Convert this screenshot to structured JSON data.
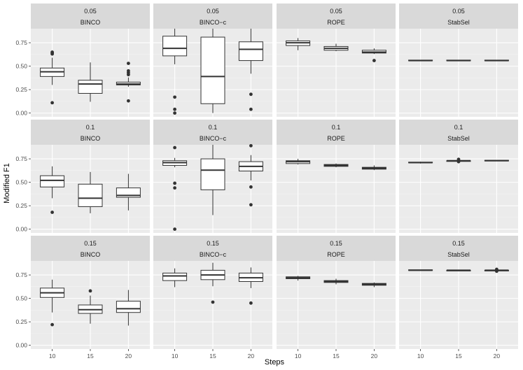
{
  "chart_data": {
    "type": "boxplot",
    "xlabel": "Steps",
    "ylabel": "Modified F1",
    "ylim": [
      -0.04,
      0.9
    ],
    "yticks": [
      0.0,
      0.25,
      0.5,
      0.75
    ],
    "ytick_labels": [
      "0.00",
      "0.25",
      "0.50",
      "0.75"
    ],
    "x_categories": [
      "10",
      "15",
      "20"
    ],
    "grid": true,
    "rows": [
      "0.05",
      "0.1",
      "0.15"
    ],
    "cols": [
      "BINCO",
      "BINCO−c",
      "ROPE",
      "StabSel"
    ],
    "panels": [
      {
        "row": "0.05",
        "method": "BINCO",
        "boxes": [
          {
            "x": "10",
            "min": 0.3,
            "q1": 0.39,
            "median": 0.44,
            "q3": 0.48,
            "max": 0.59,
            "outliers": [
              0.11,
              0.63,
              0.64,
              0.65
            ]
          },
          {
            "x": "15",
            "min": 0.12,
            "q1": 0.21,
            "median": 0.31,
            "q3": 0.35,
            "max": 0.54,
            "outliers": []
          },
          {
            "x": "20",
            "min": 0.28,
            "q1": 0.3,
            "median": 0.31,
            "q3": 0.33,
            "max": 0.38,
            "outliers": [
              0.13,
              0.41,
              0.43,
              0.45,
              0.53
            ]
          }
        ]
      },
      {
        "row": "0.05",
        "method": "BINCO−c",
        "boxes": [
          {
            "x": "10",
            "min": 0.52,
            "q1": 0.61,
            "median": 0.69,
            "q3": 0.82,
            "max": 0.9,
            "outliers": [
              0.0,
              0.04,
              0.17
            ]
          },
          {
            "x": "15",
            "min": 0.0,
            "q1": 0.1,
            "median": 0.39,
            "q3": 0.81,
            "max": 0.9,
            "outliers": []
          },
          {
            "x": "20",
            "min": 0.42,
            "q1": 0.56,
            "median": 0.68,
            "q3": 0.76,
            "max": 0.9,
            "outliers": [
              0.04,
              0.2
            ]
          }
        ]
      },
      {
        "row": "0.05",
        "method": "ROPE",
        "boxes": [
          {
            "x": "10",
            "min": 0.67,
            "q1": 0.72,
            "median": 0.75,
            "q3": 0.77,
            "max": 0.8,
            "outliers": []
          },
          {
            "x": "15",
            "min": 0.66,
            "q1": 0.67,
            "median": 0.69,
            "q3": 0.71,
            "max": 0.74,
            "outliers": []
          },
          {
            "x": "20",
            "min": 0.63,
            "q1": 0.64,
            "median": 0.65,
            "q3": 0.67,
            "max": 0.69,
            "outliers": [
              0.56
            ]
          }
        ]
      },
      {
        "row": "0.05",
        "method": "StabSel",
        "boxes": [
          {
            "x": "10",
            "min": 0.56,
            "q1": 0.56,
            "median": 0.56,
            "q3": 0.565,
            "max": 0.565,
            "outliers": []
          },
          {
            "x": "15",
            "min": 0.56,
            "q1": 0.56,
            "median": 0.56,
            "q3": 0.565,
            "max": 0.565,
            "outliers": []
          },
          {
            "x": "20",
            "min": 0.56,
            "q1": 0.56,
            "median": 0.56,
            "q3": 0.565,
            "max": 0.565,
            "outliers": []
          }
        ]
      },
      {
        "row": "0.1",
        "method": "BINCO",
        "boxes": [
          {
            "x": "10",
            "min": 0.33,
            "q1": 0.45,
            "median": 0.52,
            "q3": 0.57,
            "max": 0.67,
            "outliers": [
              0.18
            ]
          },
          {
            "x": "15",
            "min": 0.17,
            "q1": 0.24,
            "median": 0.33,
            "q3": 0.48,
            "max": 0.61,
            "outliers": []
          },
          {
            "x": "20",
            "min": 0.2,
            "q1": 0.34,
            "median": 0.36,
            "q3": 0.44,
            "max": 0.59,
            "outliers": []
          }
        ]
      },
      {
        "row": "0.1",
        "method": "BINCO−c",
        "boxes": [
          {
            "x": "10",
            "min": 0.66,
            "q1": 0.68,
            "median": 0.71,
            "q3": 0.73,
            "max": 0.76,
            "outliers": [
              0.0,
              0.44,
              0.49,
              0.87
            ]
          },
          {
            "x": "15",
            "min": 0.15,
            "q1": 0.42,
            "median": 0.63,
            "q3": 0.75,
            "max": 0.9,
            "outliers": []
          },
          {
            "x": "20",
            "min": 0.52,
            "q1": 0.62,
            "median": 0.67,
            "q3": 0.72,
            "max": 0.79,
            "outliers": [
              0.26,
              0.45,
              0.89
            ]
          }
        ]
      },
      {
        "row": "0.1",
        "method": "ROPE",
        "boxes": [
          {
            "x": "10",
            "min": 0.69,
            "q1": 0.7,
            "median": 0.72,
            "q3": 0.73,
            "max": 0.75,
            "outliers": []
          },
          {
            "x": "15",
            "min": 0.66,
            "q1": 0.67,
            "median": 0.68,
            "q3": 0.69,
            "max": 0.7,
            "outliers": []
          },
          {
            "x": "20",
            "min": 0.63,
            "q1": 0.64,
            "median": 0.65,
            "q3": 0.66,
            "max": 0.68,
            "outliers": []
          }
        ]
      },
      {
        "row": "0.1",
        "method": "StabSel",
        "boxes": [
          {
            "x": "10",
            "min": 0.7,
            "q1": 0.71,
            "median": 0.71,
            "q3": 0.715,
            "max": 0.72,
            "outliers": []
          },
          {
            "x": "15",
            "min": 0.72,
            "q1": 0.725,
            "median": 0.73,
            "q3": 0.73,
            "max": 0.735,
            "outliers": [
              0.72,
              0.745
            ]
          },
          {
            "x": "20",
            "min": 0.73,
            "q1": 0.73,
            "median": 0.73,
            "q3": 0.735,
            "max": 0.735,
            "outliers": []
          }
        ]
      },
      {
        "row": "0.15",
        "method": "BINCO",
        "boxes": [
          {
            "x": "10",
            "min": 0.35,
            "q1": 0.51,
            "median": 0.56,
            "q3": 0.61,
            "max": 0.7,
            "outliers": [
              0.22
            ]
          },
          {
            "x": "15",
            "min": 0.23,
            "q1": 0.34,
            "median": 0.38,
            "q3": 0.43,
            "max": 0.53,
            "outliers": [
              0.58
            ]
          },
          {
            "x": "20",
            "min": 0.21,
            "q1": 0.35,
            "median": 0.39,
            "q3": 0.47,
            "max": 0.59,
            "outliers": []
          }
        ]
      },
      {
        "row": "0.15",
        "method": "BINCO−c",
        "boxes": [
          {
            "x": "10",
            "min": 0.62,
            "q1": 0.69,
            "median": 0.74,
            "q3": 0.77,
            "max": 0.82,
            "outliers": []
          },
          {
            "x": "15",
            "min": 0.63,
            "q1": 0.7,
            "median": 0.75,
            "q3": 0.8,
            "max": 0.88,
            "outliers": [
              0.46
            ]
          },
          {
            "x": "20",
            "min": 0.61,
            "q1": 0.68,
            "median": 0.72,
            "q3": 0.77,
            "max": 0.83,
            "outliers": [
              0.45
            ]
          }
        ]
      },
      {
        "row": "0.15",
        "method": "ROPE",
        "boxes": [
          {
            "x": "10",
            "min": 0.69,
            "q1": 0.71,
            "median": 0.72,
            "q3": 0.73,
            "max": 0.74,
            "outliers": []
          },
          {
            "x": "15",
            "min": 0.65,
            "q1": 0.67,
            "median": 0.68,
            "q3": 0.69,
            "max": 0.71,
            "outliers": []
          },
          {
            "x": "20",
            "min": 0.62,
            "q1": 0.64,
            "median": 0.65,
            "q3": 0.66,
            "max": 0.67,
            "outliers": []
          }
        ]
      },
      {
        "row": "0.15",
        "method": "StabSel",
        "boxes": [
          {
            "x": "10",
            "min": 0.8,
            "q1": 0.8,
            "median": 0.8,
            "q3": 0.805,
            "max": 0.805,
            "outliers": []
          },
          {
            "x": "15",
            "min": 0.795,
            "q1": 0.8,
            "median": 0.8,
            "q3": 0.8,
            "max": 0.805,
            "outliers": []
          },
          {
            "x": "20",
            "min": 0.79,
            "q1": 0.795,
            "median": 0.8,
            "q3": 0.8,
            "max": 0.81,
            "outliers": [
              0.79,
              0.81
            ]
          }
        ]
      }
    ]
  }
}
